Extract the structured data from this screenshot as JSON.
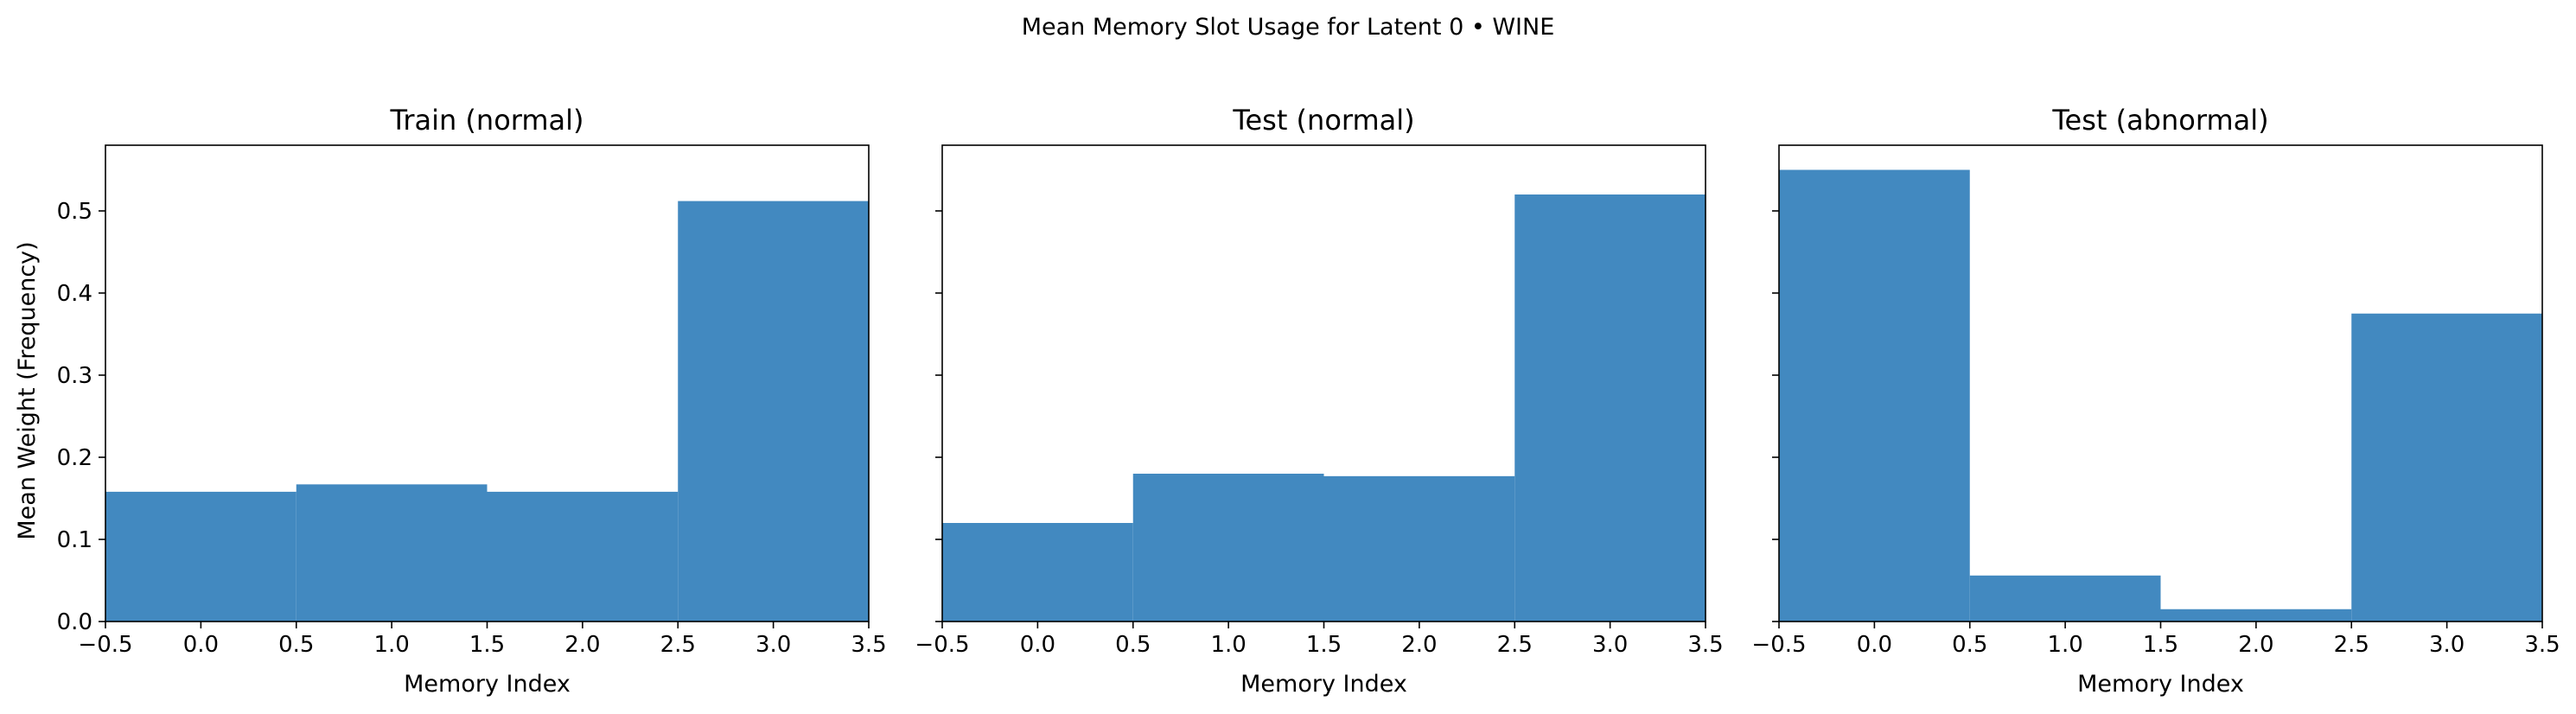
{
  "figure": {
    "suptitle": "Mean Memory Slot Usage for Latent 0 • WINE",
    "ylabel": "Mean Weight (Frequency)",
    "bar_color": "#4289c0"
  },
  "chart_data": [
    {
      "type": "bar",
      "title": "Train (normal)",
      "xlabel": "Memory Index",
      "categories": [
        0,
        1,
        2,
        3
      ],
      "values": [
        0.158,
        0.167,
        0.158,
        0.512
      ],
      "xlim": [
        -0.5,
        3.5
      ],
      "ylim": [
        0,
        0.58
      ],
      "xticks": [
        "−0.5",
        "0.0",
        "0.5",
        "1.0",
        "1.5",
        "2.0",
        "2.5",
        "3.0",
        "3.5"
      ],
      "yticks": [
        "0.0",
        "0.1",
        "0.2",
        "0.3",
        "0.4",
        "0.5"
      ],
      "grid": false
    },
    {
      "type": "bar",
      "title": "Test (normal)",
      "xlabel": "Memory Index",
      "categories": [
        0,
        1,
        2,
        3
      ],
      "values": [
        0.12,
        0.18,
        0.177,
        0.52
      ],
      "xlim": [
        -0.5,
        3.5
      ],
      "ylim": [
        0,
        0.58
      ],
      "xticks": [
        "−0.5",
        "0.0",
        "0.5",
        "1.0",
        "1.5",
        "2.0",
        "2.5",
        "3.0",
        "3.5"
      ],
      "yticks": [],
      "grid": false
    },
    {
      "type": "bar",
      "title": "Test (abnormal)",
      "xlabel": "Memory Index",
      "categories": [
        0,
        1,
        2,
        3
      ],
      "values": [
        0.55,
        0.056,
        0.015,
        0.375
      ],
      "xlim": [
        -0.5,
        3.5
      ],
      "ylim": [
        0,
        0.58
      ],
      "xticks": [
        "−0.5",
        "0.0",
        "0.5",
        "1.0",
        "1.5",
        "2.0",
        "2.5",
        "3.0",
        "3.5"
      ],
      "yticks": [],
      "grid": false
    }
  ]
}
